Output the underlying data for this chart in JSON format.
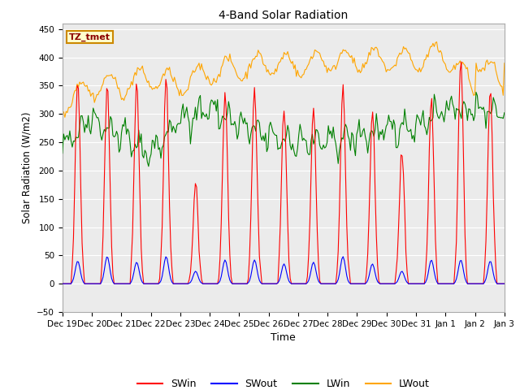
{
  "title": "4-Band Solar Radiation",
  "xlabel": "Time",
  "ylabel": "Solar Radiation (W/m2)",
  "ylim": [
    -50,
    460
  ],
  "yticks": [
    -50,
    0,
    50,
    100,
    150,
    200,
    250,
    300,
    350,
    400,
    450
  ],
  "fig_bg_color": "#ffffff",
  "plot_bg_color": "#ebebeb",
  "annotation_text": "TZ_tmet",
  "sw_in_color": "red",
  "sw_out_color": "blue",
  "lw_in_color": "green",
  "lw_out_color": "orange",
  "grid_color": "white",
  "n_days": 15,
  "xtick_labels": [
    "Dec 19",
    "Dec 20",
    "Dec 21",
    "Dec 22",
    "Dec 23",
    "Dec 24",
    "Dec 25",
    "Dec 26",
    "Dec 27",
    "Dec 28",
    "Dec 29",
    "Dec 30",
    "Dec 31",
    "Jan 1",
    "Jan 2",
    "Jan 3"
  ],
  "seed": 42,
  "sw_in_peaks": [
    360,
    360,
    360,
    370,
    180,
    340,
    345,
    315,
    310,
    355,
    305,
    235,
    330,
    400,
    345
  ],
  "sw_out_peaks": [
    40,
    48,
    38,
    48,
    22,
    42,
    42,
    35,
    38,
    48,
    35,
    22,
    42,
    42,
    40
  ],
  "lw_in_profile": [
    240,
    290,
    260,
    230,
    290,
    310,
    280,
    260,
    250,
    250,
    260,
    270,
    280,
    310,
    305
  ],
  "lw_out_profile": [
    318,
    350,
    350,
    365,
    350,
    375,
    380,
    390,
    385,
    395,
    395,
    395,
    395,
    405,
    345
  ]
}
